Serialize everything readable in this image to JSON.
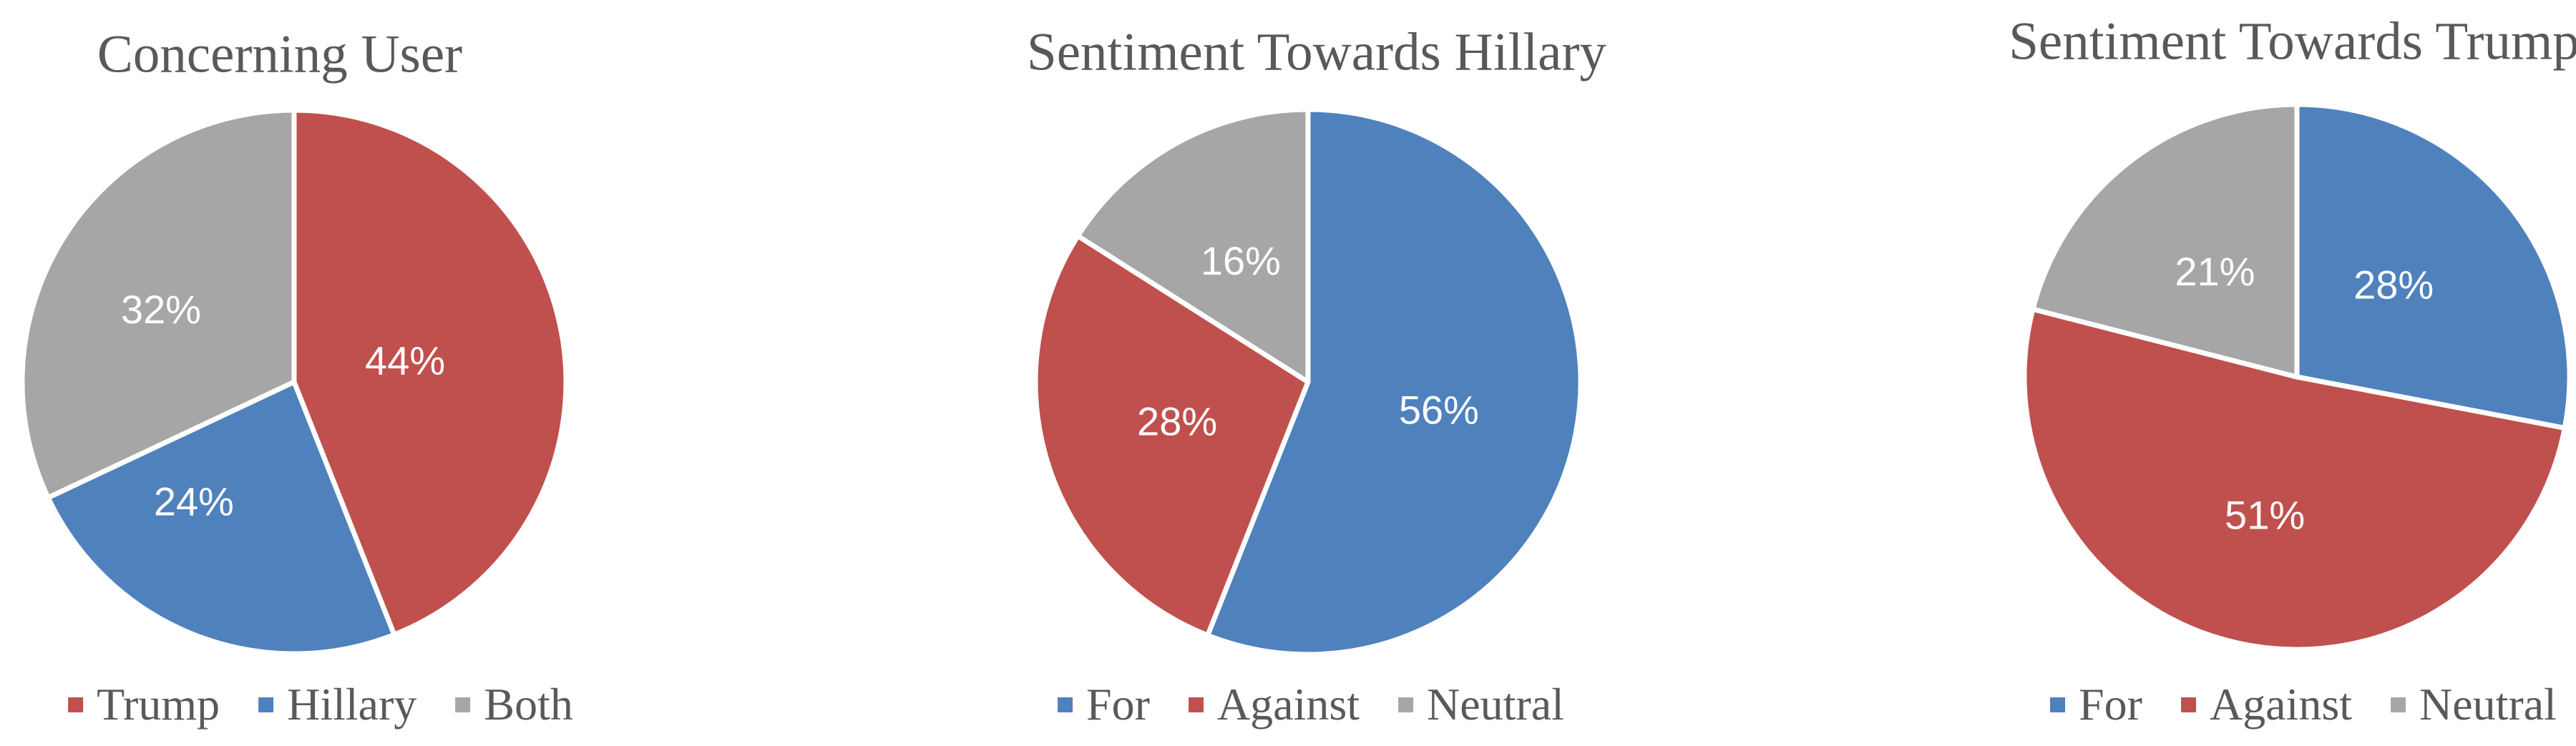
{
  "page": {
    "background_color": "#ffffff",
    "text_color": "#595959",
    "data_label_color": "#ffffff"
  },
  "chart_data": [
    {
      "type": "pie",
      "title": "Concerning User",
      "categories": [
        "Trump",
        "Hillary",
        "Both"
      ],
      "values": [
        44,
        24,
        32
      ],
      "labels": [
        "44%",
        "24%",
        "32%"
      ],
      "colors": [
        "#C0504D",
        "#4F81BD",
        "#A6A6A6"
      ],
      "start_angle_deg": 0,
      "direction": "clockwise",
      "legend_position": "bottom",
      "title_color": "#595959",
      "label_color": "#ffffff"
    },
    {
      "type": "pie",
      "title": "Sentiment Towards Hillary",
      "categories": [
        "For",
        "Against",
        "Neutral"
      ],
      "values": [
        56,
        28,
        16
      ],
      "labels": [
        "56%",
        "28%",
        "16%"
      ],
      "colors": [
        "#4F81BD",
        "#C0504D",
        "#A6A6A6"
      ],
      "start_angle_deg": 0,
      "direction": "clockwise",
      "legend_position": "bottom",
      "title_color": "#595959",
      "label_color": "#ffffff"
    },
    {
      "type": "pie",
      "title": "Sentiment Towards Trump",
      "categories": [
        "For",
        "Against",
        "Neutral"
      ],
      "values": [
        28,
        51,
        21
      ],
      "labels": [
        "28%",
        "51%",
        "21%"
      ],
      "colors": [
        "#4F81BD",
        "#C0504D",
        "#A6A6A6"
      ],
      "start_angle_deg": 0,
      "direction": "clockwise",
      "legend_position": "bottom",
      "title_color": "#595959",
      "label_color": "#ffffff"
    }
  ]
}
